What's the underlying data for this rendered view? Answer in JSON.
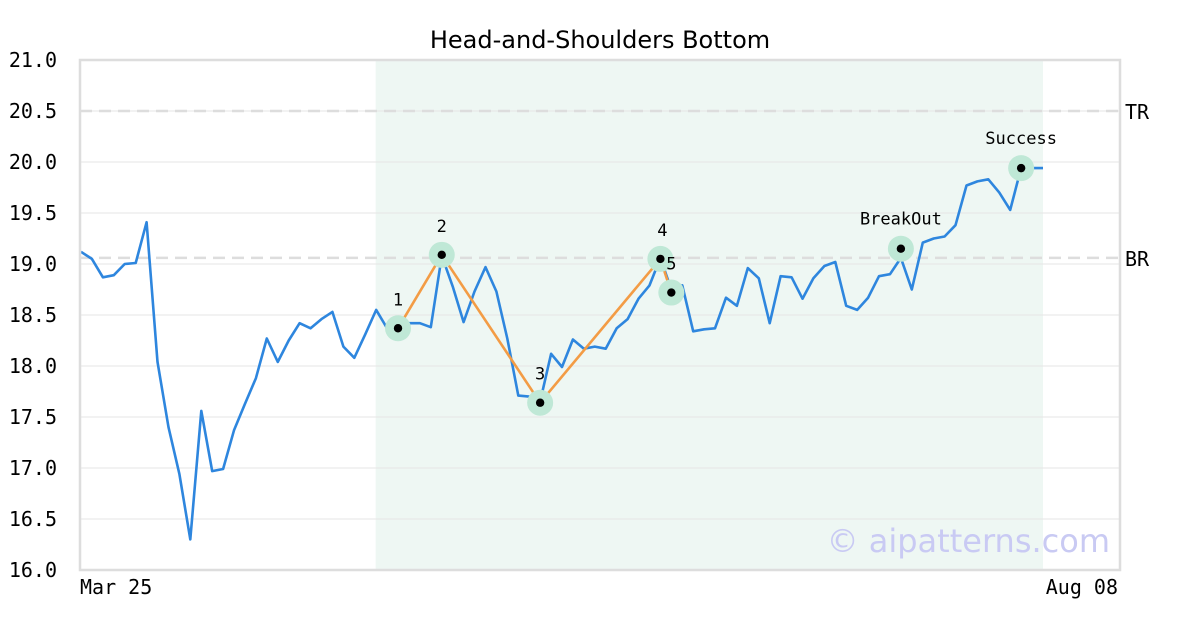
{
  "chart_data": {
    "type": "line",
    "title": "Head-and-Shoulders Bottom",
    "xlabel": "",
    "ylabel": "",
    "ylim": [
      16.0,
      21.0
    ],
    "yticks": [
      "16.0",
      "16.5",
      "17.0",
      "17.5",
      "18.0",
      "18.5",
      "19.0",
      "19.5",
      "20.0",
      "20.5",
      "21.0"
    ],
    "x_labels": {
      "start": "Mar 25",
      "end": "Aug 08"
    },
    "grid": true,
    "series": [
      {
        "values": [
          19.12,
          19.05,
          18.87,
          18.89,
          19.0,
          19.01,
          19.41,
          18.04,
          17.4,
          16.94,
          16.3,
          17.56,
          16.97,
          16.99,
          17.37,
          17.63,
          17.88,
          18.27,
          18.04,
          18.25,
          18.42,
          18.37,
          18.46,
          18.53,
          18.19,
          18.08,
          18.31,
          18.55,
          18.37,
          18.36,
          18.42,
          18.42,
          18.38,
          19.08,
          18.78,
          18.43,
          18.73,
          18.97,
          18.73,
          18.27,
          17.71,
          17.7,
          17.65,
          18.12,
          17.99,
          18.26,
          18.17,
          18.19,
          18.17,
          18.37,
          18.46,
          18.66,
          18.79,
          19.06,
          18.75,
          18.79,
          18.34,
          18.36,
          18.37,
          18.67,
          18.59,
          18.96,
          18.86,
          18.42,
          18.88,
          18.87,
          18.66,
          18.86,
          18.98,
          19.02,
          18.59,
          18.55,
          18.67,
          18.88,
          18.9,
          19.06,
          18.75,
          19.21,
          19.25,
          19.27,
          19.38,
          19.77,
          19.81,
          19.83,
          19.7,
          19.53,
          19.94,
          19.94,
          19.94
        ]
      }
    ],
    "pattern_window": {
      "start_index": 27,
      "end_index": 88
    },
    "reference_lines": [
      {
        "label": "TR",
        "value": 20.5
      },
      {
        "label": "BR",
        "value": 19.06
      }
    ],
    "pattern_points": [
      {
        "label": "1",
        "index": 29,
        "value": 18.37
      },
      {
        "label": "2",
        "index": 33,
        "value": 19.09
      },
      {
        "label": "3",
        "index": 42,
        "value": 17.64
      },
      {
        "label": "4",
        "index": 53,
        "value": 19.05
      },
      {
        "label": "5",
        "index": 54,
        "value": 18.72
      }
    ],
    "events": [
      {
        "label": "BreakOut",
        "index": 75,
        "value": 19.15
      },
      {
        "label": "Success",
        "index": 86,
        "value": 19.94
      }
    ],
    "colors": {
      "line": "#2e86de",
      "pattern_line": "#f39c45",
      "window": "#eef7f3",
      "marker_halo": "#bfe8d6",
      "marker_dot": "#000000",
      "ref_line": "#dddddd",
      "grid": "#e6e6e6",
      "frame": "#dddddd"
    }
  },
  "watermark": "© aipatterns.com"
}
